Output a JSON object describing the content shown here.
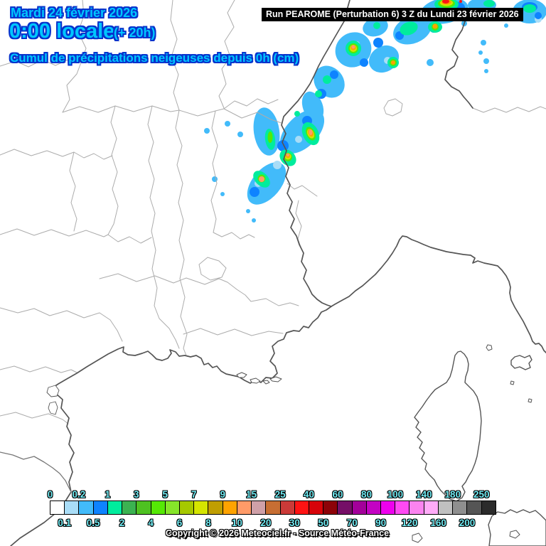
{
  "header": {
    "date_line": "Mardi 24 février 2026",
    "time_line": "0:00 locale",
    "offset_label": "(+ 20h)",
    "subtitle": "Cumul de précipitations neigeuses depuis 0h (cm)",
    "text_color": "#00C6FF",
    "outline_color": "#0733CC"
  },
  "run_banner": {
    "text": "Run PEAROME (Perturbation 6) 3 Z du Lundi 23 février 2026",
    "bg_color": "#000000",
    "text_color": "#FFFFFF"
  },
  "legend": {
    "unit": "cm",
    "top_labels": [
      "0",
      "0.2",
      "1",
      "3",
      "5",
      "7",
      "9",
      "15",
      "25",
      "40",
      "60",
      "80",
      "100",
      "140",
      "180",
      "250"
    ],
    "bottom_labels": [
      "0.1",
      "0.5",
      "2",
      "4",
      "6",
      "8",
      "10",
      "20",
      "30",
      "50",
      "70",
      "90",
      "120",
      "160",
      "200"
    ],
    "boundaries": [
      0,
      0.1,
      0.2,
      0.5,
      1,
      2,
      3,
      4,
      5,
      6,
      7,
      8,
      9,
      10,
      15,
      20,
      25,
      30,
      40,
      50,
      60,
      70,
      80,
      90,
      100,
      120,
      140,
      160,
      180,
      200,
      250
    ],
    "cell_colors": [
      "#FFFFFF",
      "#A9DDF7",
      "#42BBFA",
      "#0E83FF",
      "#00EC9D",
      "#3BB251",
      "#4EC121",
      "#55E805",
      "#86E52A",
      "#A6C800",
      "#D5E500",
      "#C09E02",
      "#FFA300",
      "#FF9B68",
      "#CFA0A8",
      "#C76E33",
      "#CB3A38",
      "#FF1313",
      "#D70309",
      "#8D0208",
      "#750F67",
      "#A3009A",
      "#C303C3",
      "#EE00EE",
      "#FF4AF3",
      "#FB83F0",
      "#FFABF8",
      "#C0C0C0",
      "#8F8F8F",
      "#555555",
      "#2B2B2B"
    ],
    "label_color": "#70EAF2"
  },
  "footer": {
    "copyright": "Copyright © 2026 Meteociel.fr - Source Météo-France"
  },
  "map": {
    "land_color": "#FFFFFF",
    "department_border_color": "#ACACAC",
    "coast_color": "#555555",
    "precip_colors": {
      "very_light": "#A9DDF7",
      "light": "#42BBFA",
      "moderate": "#0E83FF",
      "green1": "#00EC9D",
      "green2": "#55E805",
      "yellow": "#D5E500",
      "orange": "#FFA300",
      "salmon": "#FF9B68",
      "red": "#FF1313"
    }
  }
}
